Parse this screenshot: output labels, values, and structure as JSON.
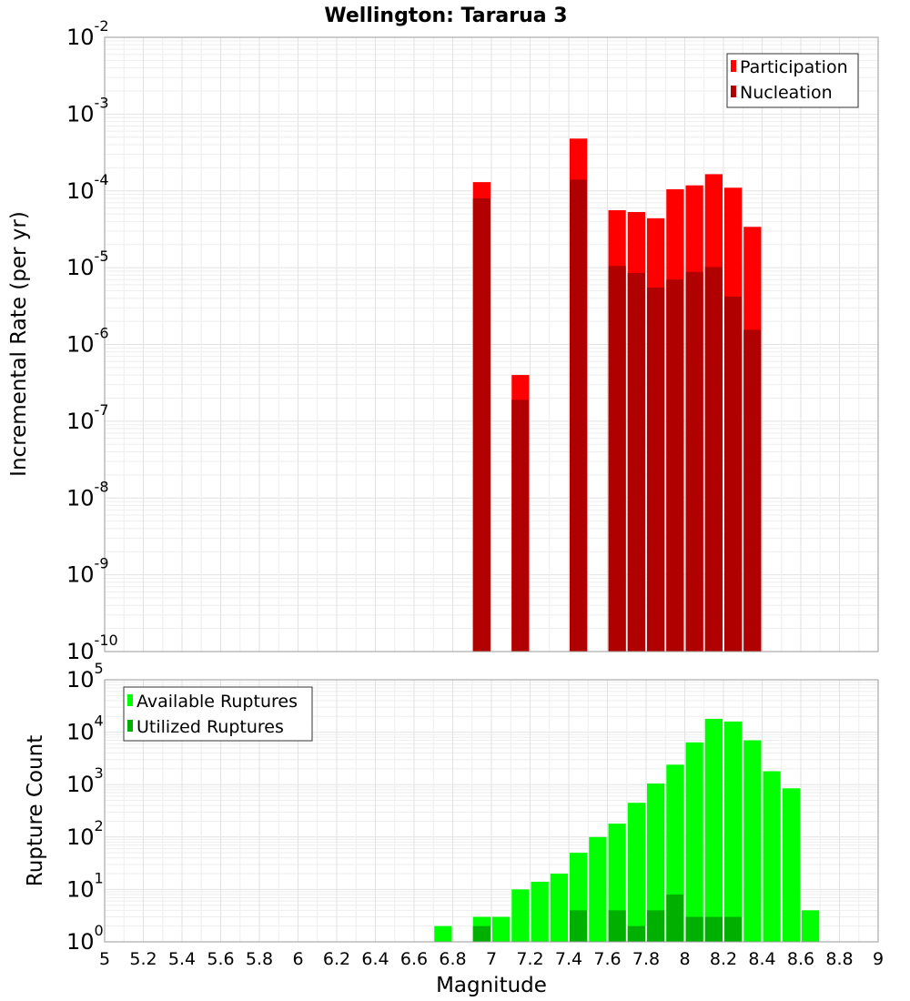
{
  "title": "Wellington: Tararua 3",
  "chart_data": [
    {
      "type": "bar",
      "ylabel": "Incremental Rate (per yr)",
      "yscale": "log",
      "ylim": [
        1e-10,
        0.01
      ],
      "xlim": [
        5,
        9
      ],
      "grid": true,
      "legend_position": "top-right",
      "bar_width": 0.1,
      "series": [
        {
          "name": "Participation",
          "color": "#ff0000",
          "x": [
            6.95,
            7.15,
            7.45,
            7.65,
            7.75,
            7.85,
            7.95,
            8.05,
            8.15,
            8.25,
            8.35
          ],
          "values": [
            0.00013,
            4e-07,
            0.00048,
            5.6e-05,
            5.3e-05,
            4.4e-05,
            0.000105,
            0.000118,
            0.000165,
            0.00011,
            3.4e-05
          ]
        },
        {
          "name": "Nucleation",
          "color": "#b00000",
          "x": [
            6.95,
            7.15,
            7.45,
            7.65,
            7.75,
            7.85,
            7.95,
            8.05,
            8.15,
            8.25,
            8.35
          ],
          "values": [
            8e-05,
            1.9e-07,
            0.00014,
            1.05e-05,
            8.5e-06,
            5.5e-06,
            7e-06,
            8.8e-06,
            1.02e-05,
            4.2e-06,
            1.55e-06
          ]
        }
      ]
    },
    {
      "type": "bar",
      "ylabel": "Rupture Count",
      "xlabel": "Magnitude",
      "yscale": "log",
      "ylim": [
        1,
        100000.0
      ],
      "xlim": [
        5,
        9
      ],
      "xticks": [
        "5",
        "5.2",
        "5.4",
        "5.6",
        "5.8",
        "6",
        "6.2",
        "6.4",
        "6.6",
        "6.8",
        "7",
        "7.2",
        "7.4",
        "7.6",
        "7.8",
        "8",
        "8.2",
        "8.4",
        "8.6",
        "8.8",
        "9"
      ],
      "grid": true,
      "legend_position": "top-left",
      "bar_width": 0.1,
      "series": [
        {
          "name": "Available Ruptures",
          "color": "#00ff00",
          "x": [
            6.75,
            6.95,
            7.05,
            7.15,
            7.25,
            7.35,
            7.45,
            7.55,
            7.65,
            7.75,
            7.85,
            7.95,
            8.05,
            8.15,
            8.25,
            8.35,
            8.45,
            8.55,
            8.65
          ],
          "values": [
            2,
            3,
            3,
            10,
            14,
            20,
            50,
            100,
            180,
            450,
            1050,
            2400,
            6400,
            18000,
            16000,
            7000,
            1800,
            850,
            4
          ]
        },
        {
          "name": "Utilized Ruptures",
          "color": "#00b000",
          "x": [
            6.95,
            7.15,
            7.45,
            7.65,
            7.75,
            7.85,
            7.95,
            8.05,
            8.15,
            8.25,
            8.35
          ],
          "values": [
            2,
            1,
            4,
            4,
            2,
            4,
            8,
            3,
            3,
            3,
            1
          ]
        }
      ]
    }
  ]
}
